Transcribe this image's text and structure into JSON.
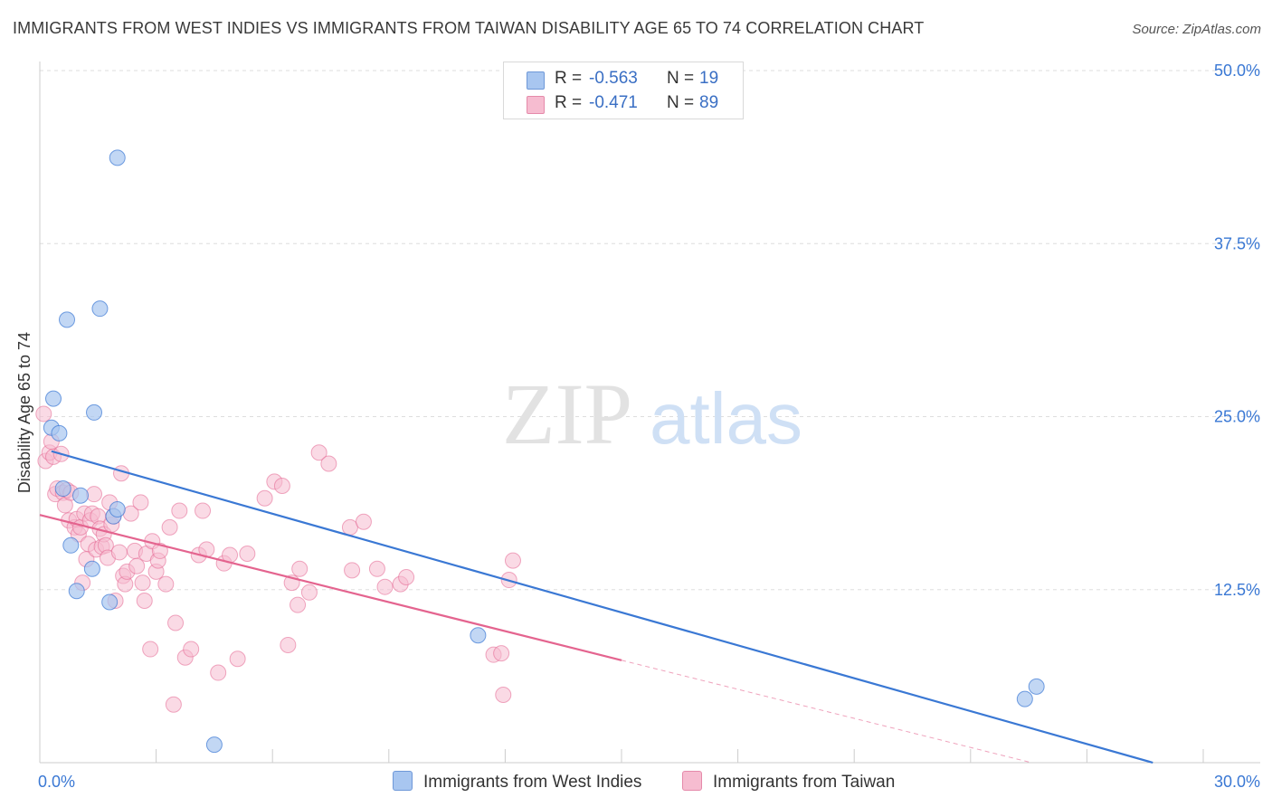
{
  "header": {
    "title": "IMMIGRANTS FROM WEST INDIES VS IMMIGRANTS FROM TAIWAN DISABILITY AGE 65 TO 74 CORRELATION CHART",
    "source": "Source: ZipAtlas.com"
  },
  "watermark": {
    "zip": "ZIP",
    "atlas": "atlas"
  },
  "legend": {
    "rows": [
      {
        "r_label": "R =",
        "r_value": "-0.563",
        "n_label": "N =",
        "n_value": "19",
        "color": "#a8c6f0"
      },
      {
        "r_label": "R =",
        "r_value": "-0.471",
        "n_label": "N =",
        "n_value": "89",
        "color": "#f6bcd0"
      }
    ]
  },
  "bottom_legend": {
    "west_indies": "Immigrants from West Indies",
    "taiwan": "Immigrants from Taiwan"
  },
  "chart_data": {
    "type": "scatter",
    "title": "IMMIGRANTS FROM WEST INDIES VS IMMIGRANTS FROM TAIWAN DISABILITY AGE 65 TO 74 CORRELATION CHART",
    "xlabel": "",
    "ylabel": "Disability Age 65 to 74",
    "xlim": [
      0,
      30
    ],
    "ylim": [
      0,
      50
    ],
    "x_tick_labels": [
      "0.0%",
      "30.0%"
    ],
    "y_tick_labels": [
      "12.5%",
      "25.0%",
      "37.5%",
      "50.0%"
    ],
    "y_tick_values": [
      12.5,
      25,
      37.5,
      50
    ],
    "colors": {
      "west_indies": "#3a78d4",
      "taiwan": "#e4648f",
      "west_indies_fill": "#a8c6f0",
      "taiwan_fill": "#f6bcd0"
    },
    "series": [
      {
        "name": "Immigrants from West Indies",
        "points": [
          [
            0.3,
            24.2
          ],
          [
            0.35,
            26.3
          ],
          [
            0.5,
            23.8
          ],
          [
            0.6,
            19.8
          ],
          [
            0.7,
            32.0
          ],
          [
            0.8,
            15.7
          ],
          [
            0.95,
            12.4
          ],
          [
            1.05,
            19.3
          ],
          [
            1.35,
            14.0
          ],
          [
            1.4,
            25.3
          ],
          [
            1.55,
            32.8
          ],
          [
            1.8,
            11.6
          ],
          [
            1.9,
            17.8
          ],
          [
            2.0,
            43.7
          ],
          [
            2.0,
            18.3
          ],
          [
            4.5,
            1.3
          ],
          [
            11.3,
            9.2
          ],
          [
            25.4,
            4.6
          ],
          [
            25.7,
            5.5
          ]
        ],
        "trend": {
          "x0": 0.3,
          "y0": 22.5,
          "x1": 28.7,
          "y1": 0
        }
      },
      {
        "name": "Immigrants from Taiwan",
        "points": [
          [
            0.1,
            25.2
          ],
          [
            0.15,
            21.8
          ],
          [
            0.25,
            22.4
          ],
          [
            0.3,
            23.2
          ],
          [
            0.35,
            22.1
          ],
          [
            0.4,
            19.4
          ],
          [
            0.45,
            19.8
          ],
          [
            0.55,
            22.3
          ],
          [
            0.6,
            19.5
          ],
          [
            0.65,
            18.6
          ],
          [
            0.7,
            19.7
          ],
          [
            0.75,
            17.5
          ],
          [
            0.8,
            19.5
          ],
          [
            0.9,
            17.0
          ],
          [
            0.95,
            17.6
          ],
          [
            1.0,
            16.5
          ],
          [
            1.05,
            17.0
          ],
          [
            1.1,
            13.0
          ],
          [
            1.15,
            18.0
          ],
          [
            1.2,
            14.7
          ],
          [
            1.25,
            15.8
          ],
          [
            1.3,
            17.5
          ],
          [
            1.35,
            18.0
          ],
          [
            1.4,
            19.4
          ],
          [
            1.45,
            15.4
          ],
          [
            1.5,
            17.8
          ],
          [
            1.55,
            16.9
          ],
          [
            1.6,
            15.6
          ],
          [
            1.65,
            16.5
          ],
          [
            1.7,
            15.7
          ],
          [
            1.75,
            14.8
          ],
          [
            1.8,
            18.8
          ],
          [
            1.85,
            17.2
          ],
          [
            1.9,
            17.8
          ],
          [
            1.95,
            11.7
          ],
          [
            2.05,
            15.2
          ],
          [
            2.1,
            20.9
          ],
          [
            2.15,
            13.5
          ],
          [
            2.2,
            12.9
          ],
          [
            2.25,
            13.8
          ],
          [
            2.35,
            18.0
          ],
          [
            2.45,
            15.3
          ],
          [
            2.5,
            14.2
          ],
          [
            2.6,
            18.8
          ],
          [
            2.65,
            13.0
          ],
          [
            2.7,
            11.7
          ],
          [
            2.75,
            15.1
          ],
          [
            2.85,
            8.2
          ],
          [
            2.9,
            16.0
          ],
          [
            3.0,
            13.8
          ],
          [
            3.05,
            14.6
          ],
          [
            3.1,
            15.3
          ],
          [
            3.25,
            12.9
          ],
          [
            3.35,
            17.0
          ],
          [
            3.45,
            4.2
          ],
          [
            3.5,
            10.1
          ],
          [
            3.6,
            18.2
          ],
          [
            3.75,
            7.6
          ],
          [
            3.9,
            8.2
          ],
          [
            4.1,
            15.0
          ],
          [
            4.2,
            18.2
          ],
          [
            4.3,
            15.4
          ],
          [
            4.6,
            6.5
          ],
          [
            4.75,
            14.4
          ],
          [
            4.9,
            15.0
          ],
          [
            5.1,
            7.5
          ],
          [
            5.35,
            15.1
          ],
          [
            5.8,
            19.1
          ],
          [
            6.05,
            20.3
          ],
          [
            6.25,
            20.0
          ],
          [
            6.4,
            8.5
          ],
          [
            6.5,
            13.0
          ],
          [
            6.65,
            11.4
          ],
          [
            6.7,
            14.0
          ],
          [
            6.95,
            12.3
          ],
          [
            7.2,
            22.4
          ],
          [
            7.45,
            21.6
          ],
          [
            8.0,
            17.0
          ],
          [
            8.05,
            13.9
          ],
          [
            8.35,
            17.4
          ],
          [
            8.7,
            14.0
          ],
          [
            8.9,
            12.7
          ],
          [
            9.3,
            12.9
          ],
          [
            9.45,
            13.4
          ],
          [
            11.7,
            7.8
          ],
          [
            11.9,
            7.9
          ],
          [
            11.95,
            4.9
          ],
          [
            12.1,
            13.2
          ],
          [
            12.2,
            14.6
          ]
        ],
        "trend": {
          "x0": 0.0,
          "y0": 17.9,
          "x1": 15.0,
          "y1": 7.4,
          "dashed_x1": 30.0,
          "dashed_y1": -3.1
        }
      }
    ]
  }
}
